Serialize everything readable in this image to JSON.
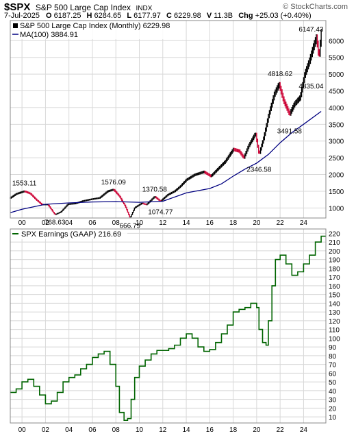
{
  "header": {
    "symbol": "$SPX",
    "name": "S&P 500 Large Cap Index",
    "exchange": "INDX",
    "brand": "© StockCharts.com",
    "date": "7-Jul-2025",
    "quote": [
      {
        "label": "O",
        "value": "6187.25"
      },
      {
        "label": "H",
        "value": "6284.65"
      },
      {
        "label": "L",
        "value": "6177.97"
      },
      {
        "label": "C",
        "value": "6229.98"
      },
      {
        "label": "V",
        "value": "11.3B"
      },
      {
        "label": "Chg",
        "value": "+25.03 (+0.40%)"
      }
    ]
  },
  "colors": {
    "up": "#000000",
    "down": "#cc0033",
    "ma": "#000080",
    "earnings": "#006400",
    "grid": "#d8d8d8",
    "panel_bg": "#ffffff"
  },
  "chart_data": [
    {
      "type": "line",
      "title": "S&P 500 Large Cap Index (Monthly) 6229.98",
      "style": "monthly price bars",
      "legend_position": "top-left",
      "series": [
        {
          "name": "S&P 500 Large Cap Index (Monthly) 6229.98",
          "x": [
            1999.0,
            1999.5,
            2000.2,
            2000.7,
            2001.2,
            2001.7,
            2002.2,
            2002.8,
            2003.3,
            2003.9,
            2004.5,
            2005.2,
            2005.9,
            2006.6,
            2007.3,
            2007.8,
            2008.3,
            2008.8,
            2009.2,
            2009.6,
            2010.2,
            2010.6,
            2011.3,
            2011.8,
            2012.4,
            2013.0,
            2013.5,
            2014.0,
            2014.7,
            2015.5,
            2016.1,
            2016.7,
            2017.3,
            2018.0,
            2018.5,
            2018.9,
            2019.3,
            2019.9,
            2020.2,
            2020.6,
            2021.0,
            2021.5,
            2021.9,
            2022.3,
            2022.8,
            2023.2,
            2023.7,
            2024.1,
            2024.5,
            2024.9,
            2025.1,
            2025.3,
            2025.5
          ],
          "values": [
            1300,
            1420,
            1500,
            1430,
            1250,
            1100,
            1100,
            800,
            880,
            1110,
            1130,
            1210,
            1260,
            1300,
            1500,
            1550,
            1350,
            1050,
            700,
            1010,
            1140,
            1100,
            1340,
            1200,
            1390,
            1500,
            1650,
            1840,
            1990,
            2080,
            1950,
            2170,
            2380,
            2750,
            2700,
            2500,
            2850,
            3230,
            2600,
            3100,
            3750,
            4400,
            4700,
            4200,
            3800,
            4100,
            4300,
            5000,
            5400,
            5900,
            6100,
            5500,
            6229.98
          ]
        },
        {
          "name": "MA(100) 3884.91",
          "x": [
            1999.0,
            2000,
            2002,
            2004,
            2006,
            2008,
            2010,
            2012,
            2014,
            2016,
            2017,
            2018,
            2019,
            2020,
            2021,
            2022,
            2023,
            2024,
            2025.5
          ],
          "values": [
            860,
            960,
            1110,
            1150,
            1180,
            1190,
            1170,
            1200,
            1450,
            1580,
            1720,
            1950,
            2160,
            2340,
            2600,
            2950,
            3250,
            3500,
            3884.91
          ]
        }
      ],
      "annotations": [
        {
          "text": "1553.11",
          "x": 2000.2,
          "y": 1553.11
        },
        {
          "text": "768.63",
          "x": 2002.8,
          "y": 768.63
        },
        {
          "text": "1576.09",
          "x": 2007.8,
          "y": 1576.09
        },
        {
          "text": "666.79",
          "x": 2009.2,
          "y": 666.79
        },
        {
          "text": "1370.58",
          "x": 2011.3,
          "y": 1370.58
        },
        {
          "text": "1074.77",
          "x": 2011.8,
          "y": 1074.77
        },
        {
          "text": "2346.58",
          "x": 2020.2,
          "y": 2346.58
        },
        {
          "text": "4818.62",
          "x": 2022.0,
          "y": 4818.62
        },
        {
          "text": "3491.58",
          "x": 2022.8,
          "y": 3491.58
        },
        {
          "text": "6147.43",
          "x": 2025.1,
          "y": 6147.43
        },
        {
          "text": "4835.04",
          "x": 2025.3,
          "y": 4835.04
        }
      ],
      "x_ticks": [
        "00",
        "02",
        "04",
        "06",
        "08",
        "10",
        "12",
        "14",
        "16",
        "18",
        "20",
        "22",
        "24"
      ],
      "x_tick_values": [
        2000,
        2002,
        2004,
        2006,
        2008,
        2010,
        2012,
        2014,
        2016,
        2018,
        2020,
        2022,
        2024
      ],
      "y_ticks": [
        1000,
        1500,
        2000,
        2500,
        3000,
        3500,
        4000,
        4500,
        5000,
        5500,
        6000
      ],
      "xlim": [
        1999.0,
        2025.9
      ],
      "ylim": [
        700,
        6600
      ],
      "grid": true
    },
    {
      "type": "line",
      "title": "SPX Earnings (GAAP) 216.69",
      "style": "step line",
      "legend_position": "top-left",
      "series": [
        {
          "name": "SPX Earnings (GAAP) 216.69",
          "x": [
            1999.0,
            1999.5,
            2000.0,
            2000.5,
            2001.0,
            2001.5,
            2002.0,
            2002.5,
            2003.0,
            2003.5,
            2004.0,
            2004.5,
            2005.0,
            2005.5,
            2006.0,
            2006.5,
            2007.0,
            2007.5,
            2008.0,
            2008.3,
            2008.7,
            2009.0,
            2009.3,
            2009.6,
            2010.0,
            2010.5,
            2011.0,
            2011.5,
            2012.0,
            2012.5,
            2013.0,
            2013.5,
            2014.0,
            2014.5,
            2015.0,
            2015.5,
            2016.0,
            2016.5,
            2017.0,
            2017.5,
            2018.0,
            2018.5,
            2019.0,
            2019.5,
            2020.0,
            2020.2,
            2020.5,
            2020.8,
            2021.0,
            2021.3,
            2021.6,
            2022.0,
            2022.5,
            2023.0,
            2023.5,
            2024.0,
            2024.5,
            2025.0,
            2025.5
          ],
          "values": [
            38,
            42,
            50,
            53,
            45,
            35,
            25,
            28,
            38,
            50,
            55,
            58,
            65,
            70,
            78,
            82,
            85,
            70,
            45,
            15,
            6,
            8,
            30,
            55,
            68,
            75,
            82,
            86,
            86,
            88,
            92,
            100,
            105,
            100,
            90,
            85,
            87,
            95,
            105,
            115,
            130,
            133,
            135,
            140,
            135,
            110,
            95,
            92,
            120,
            160,
            190,
            195,
            185,
            172,
            176,
            185,
            195,
            210,
            216.69
          ]
        }
      ],
      "x_ticks": [
        "00",
        "02",
        "04",
        "06",
        "08",
        "10",
        "12",
        "14",
        "16",
        "18",
        "20",
        "22",
        "24"
      ],
      "x_tick_values": [
        2000,
        2002,
        2004,
        2006,
        2008,
        2010,
        2012,
        2014,
        2016,
        2018,
        2020,
        2022,
        2024
      ],
      "y_ticks": [
        10,
        20,
        30,
        40,
        50,
        60,
        70,
        80,
        90,
        100,
        110,
        120,
        130,
        140,
        150,
        160,
        170,
        180,
        190,
        200,
        210,
        220
      ],
      "xlim": [
        1999.0,
        2025.9
      ],
      "ylim": [
        3,
        225
      ],
      "grid": true
    }
  ]
}
